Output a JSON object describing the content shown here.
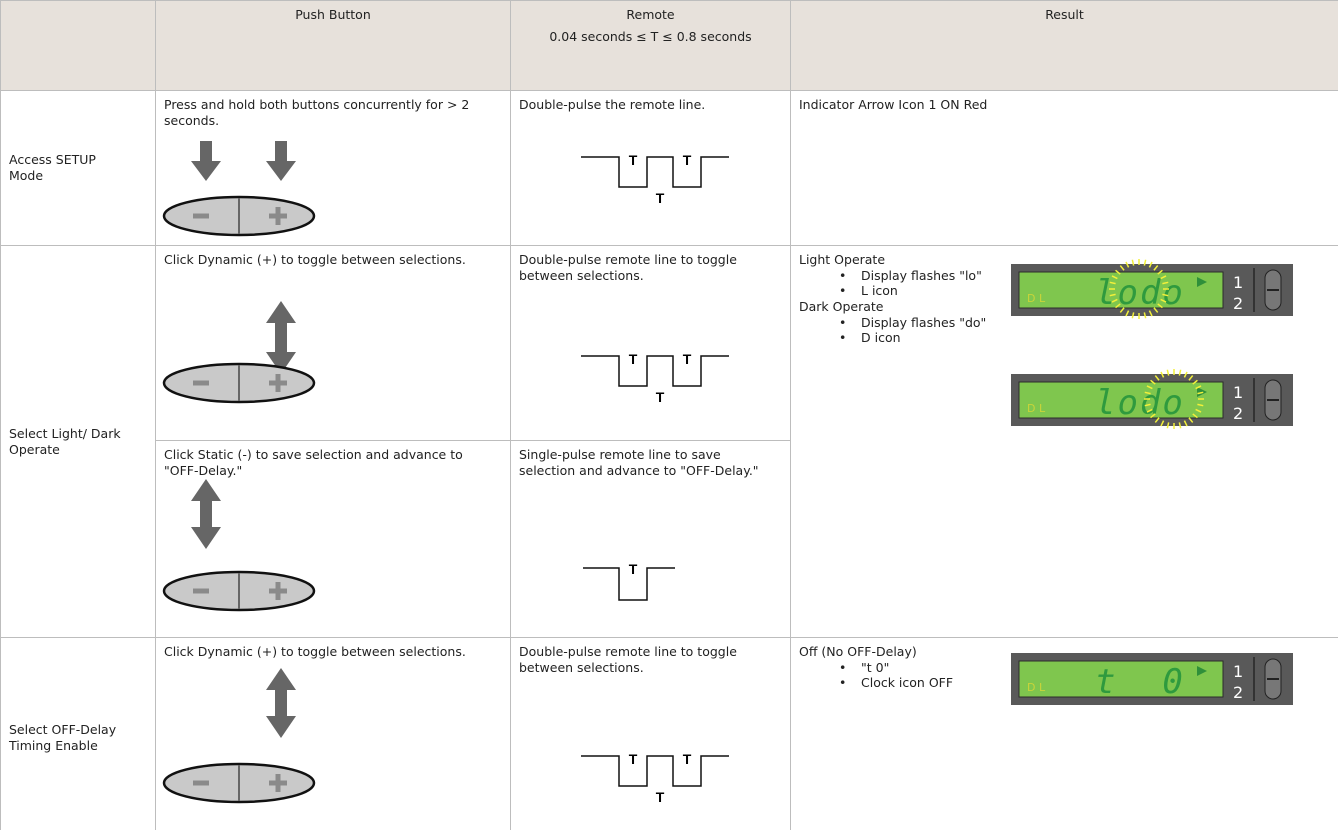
{
  "header": {
    "push_button": "Push Button",
    "remote": "Remote",
    "remote_timing": "0.04 seconds ≤ T ≤ 0.8 seconds",
    "result": "Result"
  },
  "pulse_label": "T",
  "rows": [
    {
      "label": "Access SETUP Mode",
      "steps": [
        {
          "push_button": "Press and hold both buttons concurrently for > 2 seconds.",
          "remote": "Double-pulse the remote line."
        }
      ],
      "result": {
        "items": [
          {
            "title": "Indicator Arrow Icon 1 ON Red"
          }
        ]
      }
    },
    {
      "label": "Select Light/ Dark Operate",
      "steps": [
        {
          "push_button": "Click Dynamic (+) to toggle between selections.",
          "remote": "Double-pulse remote line to toggle between selections."
        },
        {
          "push_button": "Click Static (-) to save selection and advance to \"OFF-Delay.\"",
          "remote": "Single-pulse remote line to save selection and advance to \"OFF-Delay.\""
        }
      ],
      "result": {
        "items": [
          {
            "title": "Light Operate",
            "bullets": [
              "Display flashes \"lo\"",
              "L icon"
            ],
            "display": {
              "digits": "lodo",
              "icons": "D L",
              "channel_1": "1",
              "channel_2": "2"
            }
          },
          {
            "title": "Dark Operate",
            "bullets": [
              "Display flashes \"do\"",
              "D icon"
            ],
            "display": {
              "digits": "lodo",
              "icons": "D L",
              "channel_1": "1",
              "channel_2": "2"
            }
          }
        ]
      }
    },
    {
      "label": "Select OFF-Delay Timing Enable",
      "steps": [
        {
          "push_button": "Click Dynamic (+) to toggle between selections.",
          "remote": "Double-pulse remote line to toggle between selections."
        }
      ],
      "result": {
        "items": [
          {
            "title": "Off (No OFF-Delay)",
            "bullets": [
              "\"t 0\"",
              "Clock icon OFF"
            ],
            "display": {
              "digits": "t  0",
              "icons": "D L",
              "channel_1": "1",
              "channel_2": "2"
            }
          }
        ]
      }
    }
  ]
}
